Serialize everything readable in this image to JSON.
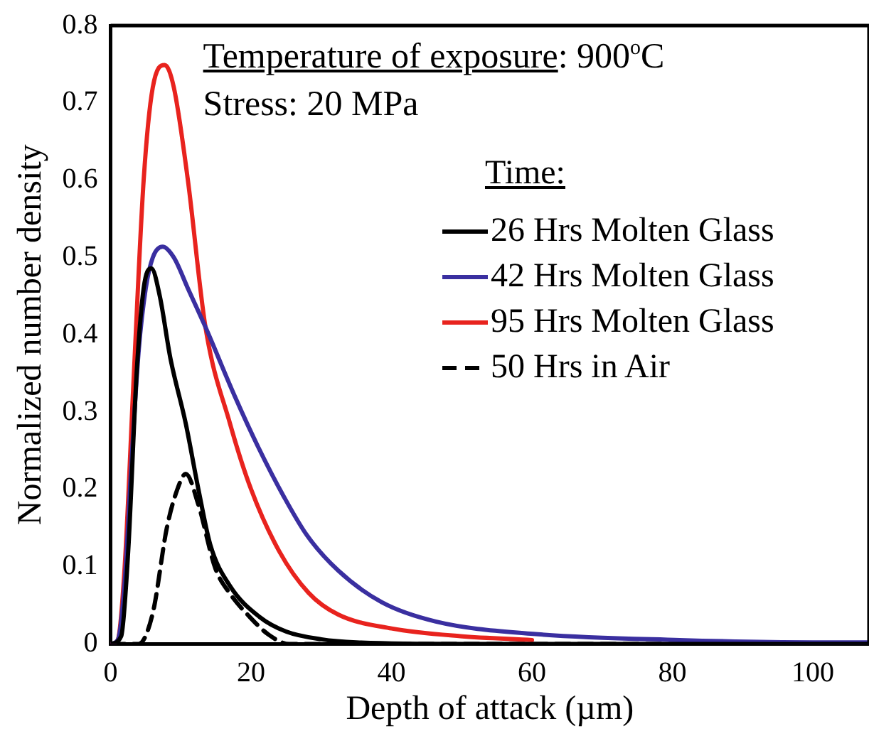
{
  "chart_data": {
    "type": "line",
    "xlabel": "Depth of attack (µm)",
    "ylabel": "Normalized number density",
    "annotations": [
      "Temperature of exposure: 900$^{o}$C",
      "Stress: 20 MPa"
    ],
    "legend_title": "Time:",
    "legend": "top right",
    "marker": "none",
    "line_style": "solid",
    "xlim": [
      0,
      108
    ],
    "xticks": [
      0,
      20,
      40,
      60,
      80,
      100
    ],
    "ylim": [
      0,
      0.8
    ],
    "yticks": [
      0,
      0.1,
      0.2,
      0.3,
      0.4,
      0.5,
      0.6,
      0.7,
      0.8
    ],
    "series": [
      {
        "name": "26 Hrs Molten Glass",
        "color": "#000000",
        "x": [
          0,
          1.5,
          2.5,
          3.7,
          4.7,
          5.8,
          7,
          8.5,
          10.7,
          12.5,
          14.2,
          17,
          21.2,
          25,
          30,
          35,
          50,
          108
        ],
        "values": [
          0,
          0.01,
          0.12,
          0.35,
          0.46,
          0.486,
          0.45,
          0.37,
          0.285,
          0.2,
          0.128,
          0.075,
          0.035,
          0.016,
          0.006,
          0.002,
          0,
          0
        ]
      },
      {
        "name": "42 Hrs Molten Glass",
        "color": "#3a2fa0",
        "x": [
          0,
          1,
          2,
          3,
          4,
          5,
          6,
          7.4,
          9,
          11,
          13.5,
          17.7,
          21,
          24.7,
          28,
          32.4,
          38.6,
          46.3,
          60.2,
          81,
          100,
          108
        ],
        "values": [
          0,
          0.005,
          0.08,
          0.24,
          0.38,
          0.46,
          0.5,
          0.514,
          0.5,
          0.46,
          0.41,
          0.32,
          0.255,
          0.19,
          0.14,
          0.095,
          0.054,
          0.029,
          0.013,
          0.005,
          0.002,
          0.002
        ]
      },
      {
        "name": "95 Hrs Molten Glass",
        "color": "#e8231e",
        "x": [
          0,
          1,
          2,
          3.3,
          4.7,
          6,
          7.7,
          9,
          11,
          13.5,
          17,
          20,
          24,
          28.2,
          32.4,
          40,
          49.8,
          60
        ],
        "values": [
          0,
          0.005,
          0.1,
          0.348,
          0.6,
          0.72,
          0.749,
          0.72,
          0.6,
          0.41,
          0.285,
          0.2,
          0.12,
          0.066,
          0.038,
          0.02,
          0.01,
          0.005
        ]
      },
      {
        "name": "50 Hrs in Air",
        "color": "#000000",
        "line_style": "dashed",
        "x": [
          0,
          4,
          6,
          8,
          9.5,
          10.7,
          12.5,
          14.9,
          17,
          19.8,
          22.5,
          25.4,
          108
        ],
        "values": [
          0,
          0,
          0.04,
          0.15,
          0.2,
          0.22,
          0.18,
          0.098,
          0.065,
          0.035,
          0.012,
          0,
          0
        ]
      }
    ]
  }
}
